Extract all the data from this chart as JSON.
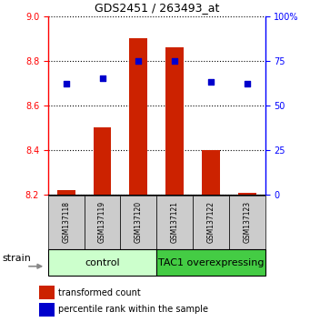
{
  "title": "GDS2451 / 263493_at",
  "samples": [
    "GSM137118",
    "GSM137119",
    "GSM137120",
    "GSM137121",
    "GSM137122",
    "GSM137123"
  ],
  "transformed_count": [
    8.22,
    8.5,
    8.9,
    8.86,
    8.4,
    8.21
  ],
  "percentile_rank": [
    62,
    65,
    75,
    75,
    63,
    62
  ],
  "ylim_left": [
    8.2,
    9.0
  ],
  "ylim_right": [
    0,
    100
  ],
  "yticks_left": [
    8.2,
    8.4,
    8.6,
    8.8,
    9.0
  ],
  "yticks_right": [
    0,
    25,
    50,
    75,
    100
  ],
  "bar_color": "#cc2200",
  "dot_color": "#0000cc",
  "bar_width": 0.5,
  "control_label": "control",
  "overexpressing_label": "TAC1 overexpressing",
  "control_bg": "#ccffcc",
  "overexpressing_bg": "#44cc44",
  "sample_bg": "#cccccc",
  "strain_label": "strain",
  "legend_bar_label": "transformed count",
  "legend_dot_label": "percentile rank within the sample",
  "fig_width": 3.41,
  "fig_height": 3.54,
  "dpi": 100
}
